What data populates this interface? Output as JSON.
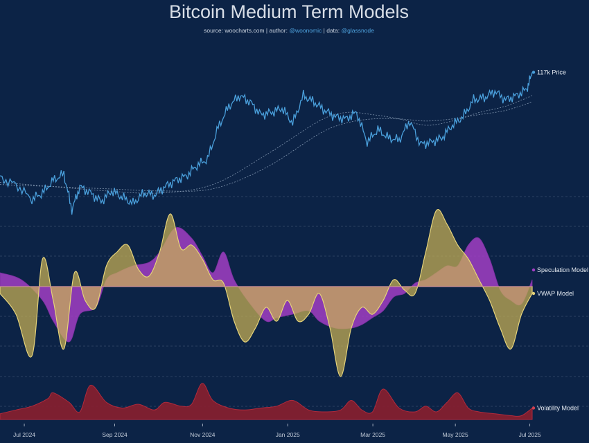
{
  "title": "Bitcoin Medium Term Models",
  "credits": {
    "source_label": "source:",
    "source": "woocharts.com",
    "author_label": "| author:",
    "author": "@woonomic",
    "data_label": "| data:",
    "data": "@glassnode"
  },
  "colors": {
    "background": "#0c2346",
    "price": "#4a9fdb",
    "ma": "#8fa2bb",
    "speculation": "#a23ec4",
    "vwap": "#c9b254",
    "overlap": "#c47ea0",
    "volatility": "#8a1f2e",
    "grid": "#6b7f99"
  },
  "chart_data": {
    "type": "line",
    "title": "Bitcoin Medium Term Models",
    "x_ticks": [
      "Jul 2024",
      "Sep 2024",
      "Nov 2024",
      "Jan 2025",
      "Mar 2025",
      "May 2025",
      "Jul 2025"
    ],
    "x_tick_pos": [
      0.03,
      0.2,
      0.365,
      0.525,
      0.685,
      0.84,
      0.98
    ],
    "x_range": [
      "Jun 2024",
      "Jul 2025"
    ],
    "legend_position": "right-end labels",
    "series": [
      {
        "name": "Price",
        "end_label": "117k Price",
        "kind": "line",
        "x": [
          0,
          0.03,
          0.06,
          0.08,
          0.1,
          0.12,
          0.135,
          0.15,
          0.17,
          0.19,
          0.21,
          0.23,
          0.25,
          0.27,
          0.29,
          0.31,
          0.33,
          0.35,
          0.37,
          0.39,
          0.41,
          0.43,
          0.45,
          0.47,
          0.49,
          0.51,
          0.53,
          0.55,
          0.57,
          0.59,
          0.61,
          0.63,
          0.65,
          0.67,
          0.69,
          0.71,
          0.73,
          0.75,
          0.77,
          0.79,
          0.81,
          0.83,
          0.85,
          0.87,
          0.89,
          0.91,
          0.93,
          0.95,
          0.97,
          0.99,
          1.0
        ],
        "y": [
          67,
          64,
          57,
          60,
          66,
          69,
          52,
          63,
          60,
          56,
          61,
          58,
          55,
          60,
          59,
          63,
          66,
          68,
          73,
          76,
          91,
          101,
          106,
          103,
          97,
          98,
          100,
          93,
          106,
          103,
          99,
          96,
          95,
          98,
          84,
          90,
          86,
          85,
          94,
          83,
          84,
          86,
          92,
          96,
          104,
          105,
          108,
          104,
          106,
          109,
          117
        ]
      },
      {
        "name": "MA short",
        "kind": "line",
        "x": [
          0,
          0.1,
          0.2,
          0.3,
          0.4,
          0.5,
          0.6,
          0.65,
          0.7,
          0.75,
          0.8,
          0.85,
          0.9,
          0.95,
          1.0
        ],
        "y": [
          65,
          63,
          61,
          60,
          64,
          78,
          94,
          98,
          97,
          95,
          92,
          94,
          98,
          101,
          106
        ]
      },
      {
        "name": "MA long",
        "kind": "line",
        "x": [
          0,
          0.1,
          0.2,
          0.3,
          0.4,
          0.5,
          0.6,
          0.65,
          0.7,
          0.75,
          0.8,
          0.85,
          0.9,
          0.95,
          1.0
        ],
        "y": [
          64,
          63,
          62,
          61,
          62,
          72,
          88,
          93,
          95,
          95,
          94,
          95,
          97,
          99,
          103
        ]
      },
      {
        "name": "Speculation Model",
        "end_label": "Speculation Model",
        "kind": "oscillator",
        "x": [
          0,
          0.04,
          0.08,
          0.1,
          0.13,
          0.15,
          0.18,
          0.2,
          0.22,
          0.25,
          0.28,
          0.3,
          0.33,
          0.36,
          0.38,
          0.4,
          0.42,
          0.44,
          0.47,
          0.5,
          0.52,
          0.55,
          0.58,
          0.6,
          0.63,
          0.66,
          0.68,
          0.7,
          0.72,
          0.74,
          0.76,
          0.78,
          0.8,
          0.82,
          0.84,
          0.86,
          0.88,
          0.9,
          0.92,
          0.94,
          0.96,
          0.98,
          1.0
        ],
        "y": [
          0.2,
          0.1,
          -0.2,
          -0.5,
          -0.8,
          -0.4,
          -0.3,
          0.1,
          0.2,
          0.3,
          0.35,
          0.5,
          0.85,
          0.7,
          0.45,
          0.2,
          0.5,
          0.1,
          -0.25,
          -0.5,
          -0.45,
          -0.4,
          -0.35,
          -0.5,
          -0.6,
          -0.6,
          -0.55,
          -0.45,
          -0.35,
          -0.15,
          -0.1,
          0.05,
          0.1,
          0.2,
          0.3,
          0.3,
          0.6,
          0.7,
          0.4,
          -0.05,
          -0.2,
          -0.25,
          0.1
        ]
      },
      {
        "name": "VWAP Model",
        "end_label": "VWAP Model",
        "kind": "oscillator",
        "x": [
          0,
          0.03,
          0.06,
          0.08,
          0.1,
          0.12,
          0.14,
          0.16,
          0.18,
          0.2,
          0.22,
          0.24,
          0.26,
          0.28,
          0.3,
          0.32,
          0.34,
          0.36,
          0.38,
          0.4,
          0.42,
          0.44,
          0.46,
          0.48,
          0.5,
          0.52,
          0.54,
          0.56,
          0.58,
          0.6,
          0.62,
          0.64,
          0.66,
          0.68,
          0.7,
          0.72,
          0.74,
          0.76,
          0.78,
          0.8,
          0.82,
          0.84,
          0.86,
          0.88,
          0.9,
          0.92,
          0.94,
          0.96,
          0.98,
          1.0
        ],
        "y": [
          -0.1,
          -0.4,
          -1.0,
          0.4,
          -0.2,
          -0.9,
          0.2,
          -0.2,
          -0.3,
          0.3,
          0.5,
          0.6,
          0.25,
          0.15,
          0.5,
          1.05,
          0.55,
          0.6,
          0.4,
          0.1,
          0.05,
          -0.5,
          -0.8,
          -0.6,
          -0.3,
          -0.5,
          -0.2,
          -0.5,
          -0.4,
          -0.1,
          -0.6,
          -1.3,
          -0.6,
          -0.3,
          -0.4,
          -0.2,
          0.1,
          -0.05,
          -0.1,
          0.5,
          1.1,
          0.9,
          0.6,
          0.4,
          0.1,
          -0.2,
          -0.6,
          -0.9,
          -0.4,
          -0.1
        ]
      },
      {
        "name": "Volatility Model",
        "end_label": "Volatility Model",
        "kind": "area",
        "x": [
          0,
          0.03,
          0.06,
          0.09,
          0.1,
          0.13,
          0.15,
          0.17,
          0.2,
          0.23,
          0.26,
          0.29,
          0.31,
          0.34,
          0.36,
          0.38,
          0.4,
          0.43,
          0.46,
          0.49,
          0.52,
          0.55,
          0.58,
          0.61,
          0.64,
          0.66,
          0.68,
          0.7,
          0.72,
          0.75,
          0.78,
          0.8,
          0.82,
          0.84,
          0.86,
          0.88,
          0.9,
          0.93,
          0.96,
          0.98,
          1.0
        ],
        "y": [
          0.15,
          0.25,
          0.35,
          0.55,
          0.7,
          0.45,
          0.2,
          0.9,
          0.45,
          0.3,
          0.4,
          0.25,
          0.45,
          0.35,
          0.4,
          0.95,
          0.5,
          0.3,
          0.25,
          0.3,
          0.35,
          0.5,
          0.25,
          0.2,
          0.25,
          0.5,
          0.25,
          0.2,
          0.8,
          0.3,
          0.2,
          0.35,
          0.2,
          0.45,
          0.7,
          0.3,
          0.2,
          0.15,
          0.1,
          0.1,
          0.3
        ]
      }
    ]
  }
}
